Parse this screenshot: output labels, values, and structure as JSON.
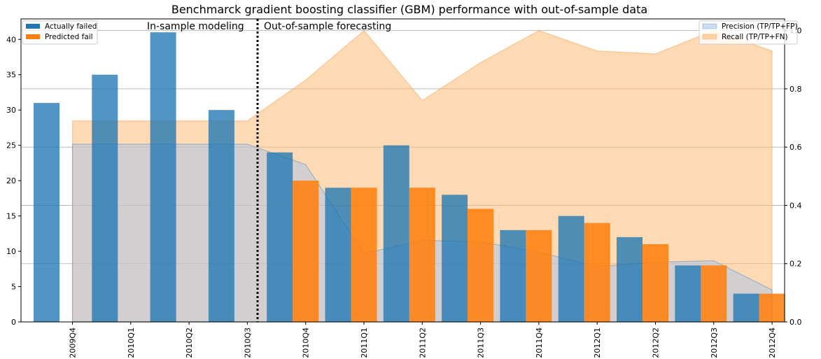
{
  "chart_data": {
    "type": "bar",
    "title": "Benchmarck gradient boosting classifier (GBM) performance with out-of-sample data",
    "categories": [
      "2009Q4",
      "2010Q1",
      "2010Q2",
      "2010Q3",
      "2010Q4",
      "2011Q1",
      "2011Q2",
      "2011Q3",
      "2011Q4",
      "2012Q1",
      "2012Q2",
      "2012Q3",
      "2012Q4"
    ],
    "series": [
      {
        "name": "Actually failed",
        "color": "#1f77b4",
        "values": [
          31,
          35,
          41,
          30,
          24,
          19,
          25,
          18,
          13,
          15,
          12,
          8,
          4
        ]
      },
      {
        "name": "Predicted fail",
        "color": "#ff7f0e",
        "values": [
          null,
          null,
          null,
          null,
          20,
          19,
          19,
          16,
          13,
          14,
          11,
          8,
          4
        ]
      }
    ],
    "secondary_series": [
      {
        "name": "Precision (TP/TP+FP)",
        "color": "#aec7e8",
        "type": "area",
        "values": [
          0.61,
          0.61,
          0.61,
          0.61,
          0.54,
          0.235,
          0.28,
          0.275,
          0.24,
          0.19,
          0.205,
          0.21,
          0.11
        ]
      },
      {
        "name": "Recall (TP/TP+FN)",
        "color": "#ffbb78",
        "type": "area",
        "values": [
          0.69,
          0.69,
          0.69,
          0.69,
          0.83,
          1.0,
          0.76,
          0.89,
          1.0,
          0.93,
          0.92,
          1.0,
          0.93
        ]
      }
    ],
    "y_ticks": [
      0,
      5,
      10,
      15,
      20,
      25,
      30,
      35,
      40
    ],
    "y2_ticks": [
      "0.0",
      "0.2",
      "0.4",
      "0.6",
      "0.8",
      "1.0"
    ],
    "ylim": [
      0,
      42.9
    ],
    "y2lim": [
      0,
      1.04
    ],
    "divider_after_category": "2010Q3",
    "annotations": [
      "In-sample modeling",
      "Out-of-sample forecasting"
    ],
    "grid": "right-axis horizontal",
    "legend_left_placement": "upper-left",
    "legend_right_placement": "upper-right"
  }
}
